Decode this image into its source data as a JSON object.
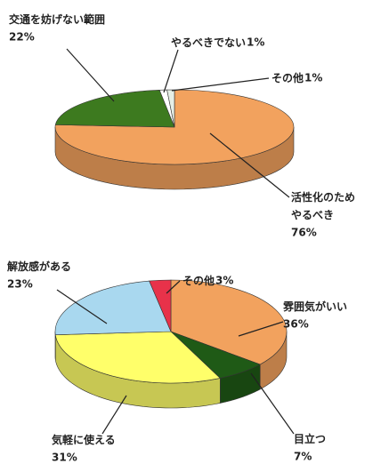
{
  "chart_data": [
    {
      "type": "pie",
      "categories": [
        "活性化のため\nやるべき",
        "交通を妨げない範囲",
        "やるべきでない",
        "その他"
      ],
      "values": [
        76,
        22,
        1,
        1
      ],
      "value_labels": [
        "76%",
        "22%",
        "1%",
        "1%"
      ],
      "colors": [
        "#f2a25e",
        "#3d7a1f",
        "#ffffff",
        "#e6efe6"
      ]
    },
    {
      "type": "pie",
      "categories": [
        "雰囲気がいい",
        "目立つ",
        "気軽に使える",
        "解放感がある",
        "その他"
      ],
      "values": [
        36,
        7,
        31,
        23,
        3
      ],
      "value_labels": [
        "36%",
        "7%",
        "31%",
        "23%",
        "3%"
      ],
      "colors": [
        "#f2a25e",
        "#1f5a16",
        "#ffff6a",
        "#a9d8ef",
        "#e8324a"
      ]
    }
  ]
}
